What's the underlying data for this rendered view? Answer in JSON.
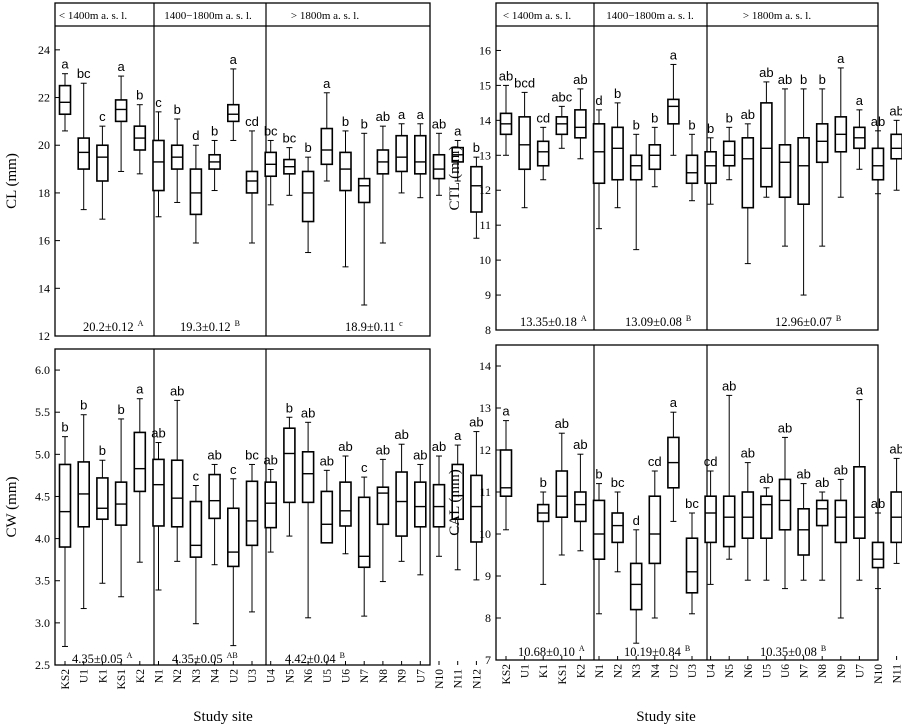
{
  "chart_data": [
    {
      "type": "boxplot",
      "ylabel": "CL (mm)",
      "ylim": [
        12,
        25
      ],
      "yticks": [
        12,
        14,
        16,
        18,
        20,
        22,
        24
      ],
      "groups": [
        {
          "label": "< 1400m a. s. l.",
          "mean_label": "20.2±0.12",
          "mean_sup": "A",
          "count": 6
        },
        {
          "label": "1400−1800m a. s. l.",
          "mean_label": "19.3±0.12",
          "mean_sup": "B",
          "count": 6
        },
        {
          "label": "> 1800m a. s. l.",
          "mean_label": "18.9±0.11",
          "mean_sup": "c",
          "count": 9
        }
      ],
      "sites": [
        {
          "min": 20.6,
          "q1": 21.3,
          "median": 21.8,
          "q3": 22.5,
          "max": 23.0,
          "letter": "a"
        },
        {
          "min": 17.3,
          "q1": 19.0,
          "median": 19.7,
          "q3": 20.3,
          "max": 22.6,
          "letter": "bc"
        },
        {
          "min": 16.9,
          "q1": 18.5,
          "median": 19.5,
          "q3": 20.0,
          "max": 20.8,
          "letter": "c"
        },
        {
          "min": 18.9,
          "q1": 21.0,
          "median": 21.5,
          "q3": 21.9,
          "max": 22.9,
          "letter": "a"
        },
        {
          "min": 18.8,
          "q1": 19.8,
          "median": 20.3,
          "q3": 20.8,
          "max": 21.7,
          "letter": "b"
        },
        {
          "min": 17.0,
          "q1": 18.1,
          "median": 19.3,
          "q3": 20.2,
          "max": 21.4,
          "letter": "c"
        },
        {
          "min": 17.6,
          "q1": 19.0,
          "median": 19.5,
          "q3": 20.0,
          "max": 21.1,
          "letter": "b"
        },
        {
          "min": 15.9,
          "q1": 17.1,
          "median": 18.0,
          "q3": 19.0,
          "max": 20.0,
          "letter": "d"
        },
        {
          "min": 18.1,
          "q1": 19.0,
          "median": 19.3,
          "q3": 19.6,
          "max": 20.2,
          "letter": "b"
        },
        {
          "min": 20.2,
          "q1": 21.0,
          "median": 21.3,
          "q3": 21.7,
          "max": 23.2,
          "letter": "a"
        },
        {
          "min": 15.9,
          "q1": 18.0,
          "median": 18.5,
          "q3": 18.9,
          "max": 20.6,
          "letter": "cd"
        },
        {
          "min": 17.5,
          "q1": 18.7,
          "median": 19.2,
          "q3": 19.7,
          "max": 20.2,
          "letter": "bc"
        },
        {
          "min": 17.9,
          "q1": 18.8,
          "median": 19.1,
          "q3": 19.4,
          "max": 19.9,
          "letter": "bc"
        },
        {
          "min": 15.5,
          "q1": 16.8,
          "median": 18.0,
          "q3": 18.9,
          "max": 19.5,
          "letter": "b"
        },
        {
          "min": 18.5,
          "q1": 19.2,
          "median": 19.8,
          "q3": 20.7,
          "max": 22.2,
          "letter": "a"
        },
        {
          "min": 14.9,
          "q1": 18.1,
          "median": 19.0,
          "q3": 19.7,
          "max": 20.6,
          "letter": "b"
        },
        {
          "min": 13.3,
          "q1": 17.6,
          "median": 18.3,
          "q3": 18.6,
          "max": 20.5,
          "letter": "b"
        },
        {
          "min": 15.9,
          "q1": 18.8,
          "median": 19.3,
          "q3": 19.8,
          "max": 20.8,
          "letter": "ab"
        },
        {
          "min": 18.0,
          "q1": 18.9,
          "median": 19.5,
          "q3": 20.4,
          "max": 20.9,
          "letter": "a"
        },
        {
          "min": 17.8,
          "q1": 18.8,
          "median": 19.3,
          "q3": 20.4,
          "max": 20.9,
          "letter": "a"
        },
        {
          "min": 17.9,
          "q1": 18.6,
          "median": 19.0,
          "q3": 19.6,
          "max": 20.5,
          "letter": "ab"
        },
        {
          "min": 18.5,
          "q1": 19.3,
          "median": 19.6,
          "q3": 19.9,
          "max": 20.2,
          "letter": "a"
        },
        {
          "min": 16.1,
          "q1": 17.2,
          "median": 18.3,
          "q3": 19.1,
          "max": 19.5,
          "letter": "b"
        }
      ]
    },
    {
      "type": "boxplot",
      "ylabel": "CTL (mm)",
      "ylim": [
        8,
        16.7
      ],
      "yticks": [
        8,
        9,
        10,
        11,
        12,
        13,
        14,
        15,
        16
      ],
      "groups": [
        {
          "label": "< 1400m a. s. l.",
          "mean_label": "13.35±0.18",
          "mean_sup": "A",
          "count": 6
        },
        {
          "label": "1400−1800m a. s. l.",
          "mean_label": "13.09±0.08",
          "mean_sup": "B",
          "count": 6
        },
        {
          "label": "> 1800m a. s. l.",
          "mean_label": "12.96±0.07",
          "mean_sup": "B",
          "count": 9
        }
      ],
      "sites": [
        {
          "min": 13.0,
          "q1": 13.6,
          "median": 13.9,
          "q3": 14.2,
          "max": 15.0,
          "letter": "ab"
        },
        {
          "min": 11.5,
          "q1": 12.6,
          "median": 13.3,
          "q3": 14.1,
          "max": 14.8,
          "letter": "bcd"
        },
        {
          "min": 12.3,
          "q1": 12.7,
          "median": 13.1,
          "q3": 13.4,
          "max": 13.8,
          "letter": "cd"
        },
        {
          "min": 13.2,
          "q1": 13.6,
          "median": 13.9,
          "q3": 14.1,
          "max": 14.4,
          "letter": "abc"
        },
        {
          "min": 12.9,
          "q1": 13.5,
          "median": 13.8,
          "q3": 14.3,
          "max": 14.9,
          "letter": "ab"
        },
        {
          "min": 10.9,
          "q1": 12.2,
          "median": 13.1,
          "q3": 13.9,
          "max": 14.3,
          "letter": "d"
        },
        {
          "min": 11.5,
          "q1": 12.3,
          "median": 13.2,
          "q3": 13.8,
          "max": 14.5,
          "letter": "b"
        },
        {
          "min": 10.3,
          "q1": 12.3,
          "median": 12.7,
          "q3": 13.0,
          "max": 13.6,
          "letter": "b"
        },
        {
          "min": 12.1,
          "q1": 12.6,
          "median": 13.0,
          "q3": 13.3,
          "max": 13.8,
          "letter": "b"
        },
        {
          "min": 13.0,
          "q1": 13.9,
          "median": 14.4,
          "q3": 14.6,
          "max": 15.6,
          "letter": "a"
        },
        {
          "min": 11.7,
          "q1": 12.2,
          "median": 12.5,
          "q3": 13.0,
          "max": 13.6,
          "letter": "b"
        },
        {
          "min": 11.6,
          "q1": 12.2,
          "median": 12.7,
          "q3": 13.1,
          "max": 13.5,
          "letter": "b"
        },
        {
          "min": 12.3,
          "q1": 12.7,
          "median": 13.0,
          "q3": 13.4,
          "max": 13.8,
          "letter": "b"
        },
        {
          "min": 9.9,
          "q1": 11.5,
          "median": 12.9,
          "q3": 13.5,
          "max": 13.9,
          "letter": "ab"
        },
        {
          "min": 11.8,
          "q1": 12.1,
          "median": 13.2,
          "q3": 14.5,
          "max": 15.1,
          "letter": "ab"
        },
        {
          "min": 10.4,
          "q1": 11.8,
          "median": 12.8,
          "q3": 13.3,
          "max": 14.9,
          "letter": "ab"
        },
        {
          "min": 9.0,
          "q1": 11.6,
          "median": 12.7,
          "q3": 13.5,
          "max": 14.9,
          "letter": "b"
        },
        {
          "min": 10.4,
          "q1": 12.8,
          "median": 13.4,
          "q3": 13.9,
          "max": 14.9,
          "letter": "b"
        },
        {
          "min": 11.8,
          "q1": 13.1,
          "median": 13.6,
          "q3": 14.1,
          "max": 15.5,
          "letter": "a"
        },
        {
          "min": 12.6,
          "q1": 13.2,
          "median": 13.5,
          "q3": 13.8,
          "max": 14.3,
          "letter": "a"
        },
        {
          "min": 11.9,
          "q1": 12.3,
          "median": 12.7,
          "q3": 13.2,
          "max": 13.7,
          "letter": "ab"
        },
        {
          "min": 12.0,
          "q1": 12.9,
          "median": 13.2,
          "q3": 13.6,
          "max": 14.0,
          "letter": "ab"
        },
        {
          "min": 10.7,
          "q1": 11.8,
          "median": 12.5,
          "q3": 13.1,
          "max": 13.7,
          "letter": "b"
        }
      ]
    },
    {
      "type": "boxplot",
      "ylabel": "CW (mm)",
      "ylim": [
        2.5,
        6.25
      ],
      "yticks": [
        2.5,
        3.0,
        3.5,
        4.0,
        4.5,
        5.0,
        5.5,
        6.0
      ],
      "xlabel": "Study site",
      "groups": [
        {
          "label": "",
          "mean_label": "4.35±0.05",
          "mean_sup": "A",
          "count": 6
        },
        {
          "label": "",
          "mean_label": "4.35±0.05",
          "mean_sup": "AB",
          "count": 6
        },
        {
          "label": "",
          "mean_label": "4.42±0.04",
          "mean_sup": "B",
          "count": 9
        }
      ],
      "categories": [
        "KS2",
        "U1",
        "K1",
        "KS1",
        "K2",
        "N1",
        "N2",
        "N3",
        "N4",
        "U2",
        "U3",
        "U4",
        "N5",
        "N6",
        "U5",
        "U6",
        "N7",
        "N8",
        "N9",
        "U7",
        "N10",
        "N11",
        "N12"
      ],
      "sites": [
        {
          "min": 2.72,
          "q1": 3.9,
          "median": 4.32,
          "q3": 4.88,
          "max": 5.21,
          "letter": "b"
        },
        {
          "min": 3.17,
          "q1": 4.14,
          "median": 4.53,
          "q3": 4.91,
          "max": 5.47,
          "letter": "b"
        },
        {
          "min": 3.47,
          "q1": 4.23,
          "median": 4.36,
          "q3": 4.72,
          "max": 4.93,
          "letter": "b"
        },
        {
          "min": 3.31,
          "q1": 4.16,
          "median": 4.41,
          "q3": 4.67,
          "max": 5.42,
          "letter": "b"
        },
        {
          "min": 3.72,
          "q1": 4.56,
          "median": 4.83,
          "q3": 5.26,
          "max": 5.66,
          "letter": "a"
        },
        {
          "min": 3.39,
          "q1": 4.15,
          "median": 4.64,
          "q3": 4.94,
          "max": 5.14,
          "letter": "ab"
        },
        {
          "min": 3.73,
          "q1": 4.14,
          "median": 4.48,
          "q3": 4.93,
          "max": 5.64,
          "letter": "ab"
        },
        {
          "min": 2.99,
          "q1": 3.78,
          "median": 3.92,
          "q3": 4.44,
          "max": 4.63,
          "letter": "c"
        },
        {
          "min": 3.69,
          "q1": 4.24,
          "median": 4.45,
          "q3": 4.76,
          "max": 4.88,
          "letter": "ab"
        },
        {
          "min": 2.73,
          "q1": 3.67,
          "median": 3.84,
          "q3": 4.36,
          "max": 4.71,
          "letter": "c"
        },
        {
          "min": 3.13,
          "q1": 3.92,
          "median": 4.21,
          "q3": 4.68,
          "max": 4.88,
          "letter": "bc"
        },
        {
          "min": 3.84,
          "q1": 4.13,
          "median": 4.42,
          "q3": 4.67,
          "max": 4.82,
          "letter": "ab"
        },
        {
          "min": 4.03,
          "q1": 4.43,
          "median": 5.01,
          "q3": 5.31,
          "max": 5.44,
          "letter": "b"
        },
        {
          "min": 3.06,
          "q1": 4.43,
          "median": 4.77,
          "q3": 5.03,
          "max": 5.38,
          "letter": "ab"
        },
        {
          "min": 3.95,
          "q1": 3.95,
          "median": 4.17,
          "q3": 4.56,
          "max": 4.81,
          "letter": "ab"
        },
        {
          "min": 3.82,
          "q1": 4.15,
          "median": 4.33,
          "q3": 4.67,
          "max": 4.98,
          "letter": "ab"
        },
        {
          "min": 3.08,
          "q1": 3.66,
          "median": 3.79,
          "q3": 4.49,
          "max": 4.73,
          "letter": "c"
        },
        {
          "min": 3.49,
          "q1": 4.17,
          "median": 4.54,
          "q3": 4.61,
          "max": 4.94,
          "letter": "ab"
        },
        {
          "min": 3.73,
          "q1": 4.03,
          "median": 4.44,
          "q3": 4.79,
          "max": 5.12,
          "letter": "ab"
        },
        {
          "min": 3.57,
          "q1": 4.14,
          "median": 4.38,
          "q3": 4.67,
          "max": 4.88,
          "letter": "ab"
        },
        {
          "min": 3.79,
          "q1": 4.14,
          "median": 4.38,
          "q3": 4.64,
          "max": 4.98,
          "letter": "ab"
        },
        {
          "min": 3.63,
          "q1": 4.23,
          "median": 4.51,
          "q3": 4.88,
          "max": 5.11,
          "letter": "a"
        },
        {
          "min": 3.51,
          "q1": 3.96,
          "median": 4.38,
          "q3": 4.75,
          "max": 5.27,
          "letter": "ab"
        }
      ]
    },
    {
      "type": "boxplot",
      "ylabel": "CAL (mm)",
      "ylim": [
        7,
        14.5
      ],
      "yticks": [
        7,
        8,
        9,
        10,
        11,
        12,
        13,
        14
      ],
      "xlabel": "Study site",
      "groups": [
        {
          "label": "",
          "mean_label": "10.68±0.10",
          "mean_sup": "A",
          "count": 6
        },
        {
          "label": "",
          "mean_label": "10.19±0.84",
          "mean_sup": "B",
          "count": 6
        },
        {
          "label": "",
          "mean_label": "10.35±0.08",
          "mean_sup": "B",
          "count": 9
        }
      ],
      "categories": [
        "KS2",
        "U1",
        "K1",
        "KS1",
        "K2",
        "N1",
        "N2",
        "N3",
        "N4",
        "U2",
        "U3",
        "U4",
        "N5",
        "N6",
        "U5",
        "U6",
        "N7",
        "N8",
        "N9",
        "U7",
        "N10",
        "N11",
        "N12"
      ],
      "sites": [
        {
          "min": 10.1,
          "q1": 10.9,
          "median": 11.1,
          "q3": 12.0,
          "max": 12.7,
          "letter": "a"
        },
        null,
        {
          "min": 8.8,
          "q1": 10.3,
          "median": 10.5,
          "q3": 10.7,
          "max": 11.0,
          "letter": "b"
        },
        {
          "min": 9.5,
          "q1": 10.4,
          "median": 10.9,
          "q3": 11.5,
          "max": 12.4,
          "letter": "ab"
        },
        {
          "min": 9.6,
          "q1": 10.3,
          "median": 10.7,
          "q3": 11.0,
          "max": 11.9,
          "letter": "ab"
        },
        {
          "min": 8.1,
          "q1": 9.4,
          "median": 10.0,
          "q3": 10.8,
          "max": 11.2,
          "letter": "b"
        },
        {
          "min": 9.1,
          "q1": 9.8,
          "median": 10.2,
          "q3": 10.5,
          "max": 11.0,
          "letter": "bc"
        },
        {
          "min": 7.4,
          "q1": 8.2,
          "median": 8.8,
          "q3": 9.3,
          "max": 10.1,
          "letter": "d"
        },
        {
          "min": 8.0,
          "q1": 9.3,
          "median": 10.0,
          "q3": 10.9,
          "max": 11.5,
          "letter": "cd"
        },
        {
          "min": 10.3,
          "q1": 11.1,
          "median": 11.7,
          "q3": 12.3,
          "max": 12.9,
          "letter": "a"
        },
        {
          "min": 8.1,
          "q1": 8.6,
          "median": 9.1,
          "q3": 9.9,
          "max": 10.5,
          "letter": "bc"
        },
        {
          "min": 8.8,
          "q1": 9.8,
          "median": 10.5,
          "q3": 10.9,
          "max": 11.5,
          "letter": "cd"
        },
        {
          "min": 9.4,
          "q1": 9.7,
          "median": 10.4,
          "q3": 10.9,
          "max": 13.3,
          "letter": "ab"
        },
        {
          "min": 8.9,
          "q1": 9.9,
          "median": 10.4,
          "q3": 11.0,
          "max": 11.7,
          "letter": "ab"
        },
        {
          "min": 8.9,
          "q1": 9.9,
          "median": 10.7,
          "q3": 10.9,
          "max": 11.1,
          "letter": "ab"
        },
        {
          "min": 8.7,
          "q1": 10.1,
          "median": 10.8,
          "q3": 11.3,
          "max": 12.3,
          "letter": "ab"
        },
        {
          "min": 8.9,
          "q1": 9.5,
          "median": 10.1,
          "q3": 10.6,
          "max": 11.2,
          "letter": "ab"
        },
        {
          "min": 8.9,
          "q1": 10.2,
          "median": 10.6,
          "q3": 10.8,
          "max": 11.0,
          "letter": "ab"
        },
        {
          "min": 8.0,
          "q1": 9.8,
          "median": 10.4,
          "q3": 10.8,
          "max": 11.3,
          "letter": "ab"
        },
        {
          "min": 8.9,
          "q1": 9.9,
          "median": 10.4,
          "q3": 11.6,
          "max": 13.2,
          "letter": "a"
        },
        {
          "min": 8.7,
          "q1": 9.2,
          "median": 9.4,
          "q3": 9.8,
          "max": 10.5,
          "letter": "ab"
        },
        {
          "min": 9.3,
          "q1": 9.8,
          "median": 10.4,
          "q3": 11.0,
          "max": 11.8,
          "letter": "ab"
        },
        {
          "min": 8.2,
          "q1": 10.3,
          "median": 10.6,
          "q3": 11.1,
          "max": 11.4,
          "letter": "b"
        }
      ]
    }
  ]
}
